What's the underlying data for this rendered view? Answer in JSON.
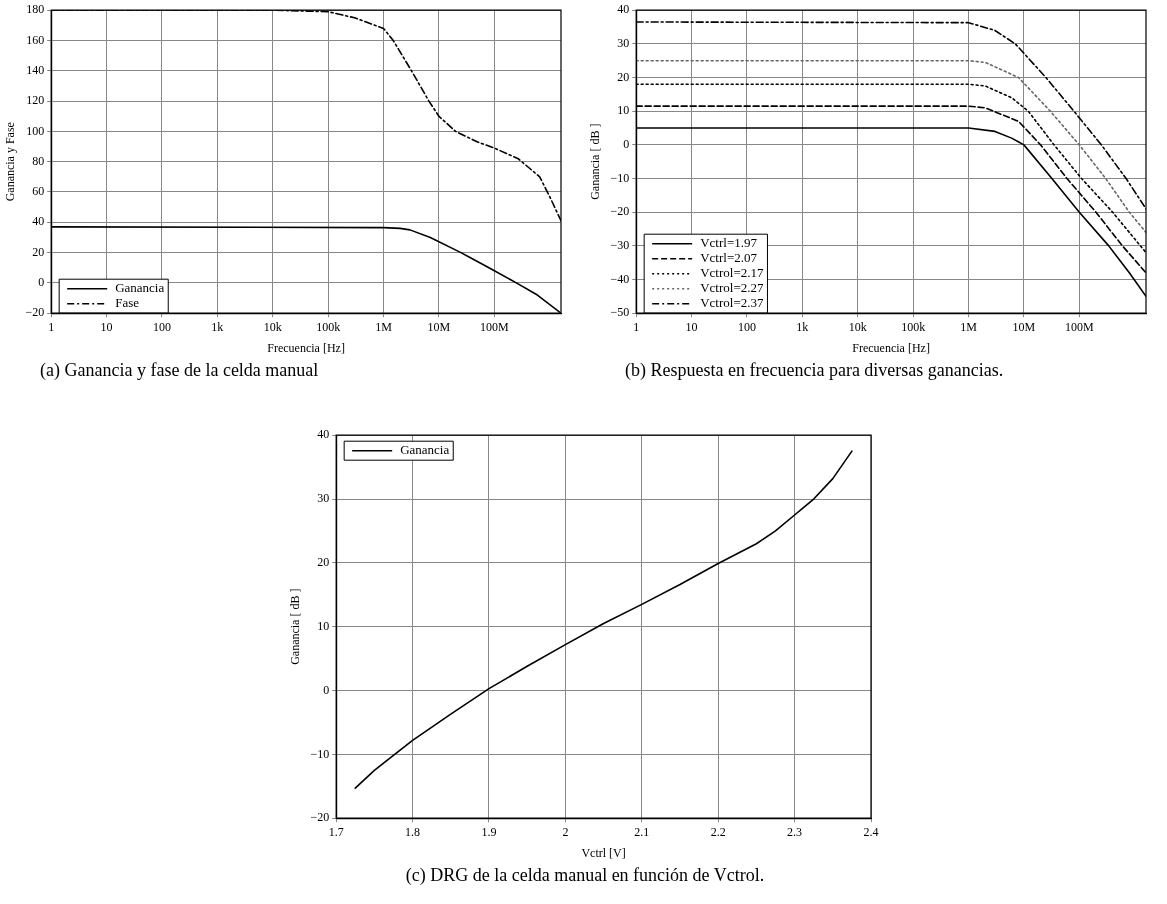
{
  "chart_data": [
    {
      "type": "line",
      "xlabel": "Frecuencia [Hz]",
      "ylabel": "Ganancia y Fase",
      "log": "x",
      "grid": true,
      "legend": "bottom left",
      "marker": "none",
      "xlim": [
        1,
        1600000000
      ],
      "xticks": [
        1,
        10,
        100,
        {
          "value": 1000,
          "label": "1k"
        },
        {
          "value": 10000,
          "label": "10k"
        },
        {
          "value": 100000,
          "label": "100k"
        },
        {
          "value": 1000000,
          "label": "1M"
        },
        {
          "value": 10000000,
          "label": "10M"
        },
        {
          "value": 100000000,
          "label": "100M"
        }
      ],
      "ylim": [
        -20,
        180
      ],
      "yticks": [
        -20,
        0,
        20,
        40,
        60,
        80,
        100,
        120,
        140,
        160,
        180
      ],
      "annotations": [
        "(a) Ganancia y fase de la celda manual"
      ],
      "series": [
        {
          "name": "Ganancia",
          "color": "#000000",
          "line_style": "solid",
          "x": [
            1,
            1000000,
            2000000,
            3000000,
            7000000,
            25000000,
            80000000,
            250000000,
            600000000,
            1600000000
          ],
          "values": [
            37,
            36.5,
            36,
            35,
            30,
            20,
            10,
            0,
            -8,
            -20
          ]
        },
        {
          "name": "Fase",
          "color": "#000000",
          "line_style": "dashdot",
          "x": [
            1,
            10000,
            100000,
            300000,
            1000000,
            1500000,
            3200000,
            6600000,
            10000000,
            20000000,
            50000000,
            100000000,
            270000000,
            660000000,
            1000000000,
            1600000000
          ],
          "values": [
            180,
            180,
            179,
            175,
            168,
            160,
            140,
            120,
            110,
            100,
            93,
            89,
            82,
            70,
            57,
            41
          ]
        }
      ]
    },
    {
      "type": "line",
      "xlabel": "Frecuencia [Hz]",
      "ylabel": "Ganancia [ dB ]",
      "log": "x",
      "grid": true,
      "legend": "bottom left",
      "marker": "none",
      "xlim": [
        1,
        1600000000
      ],
      "xticks": [
        1,
        10,
        100,
        {
          "value": 1000,
          "label": "1k"
        },
        {
          "value": 10000,
          "label": "10k"
        },
        {
          "value": 100000,
          "label": "100k"
        },
        {
          "value": 1000000,
          "label": "1M"
        },
        {
          "value": 10000000,
          "label": "10M"
        },
        {
          "value": 100000000,
          "label": "100M"
        }
      ],
      "ylim": [
        -50,
        40
      ],
      "yticks": [
        -50,
        -40,
        -30,
        -20,
        -10,
        0,
        10,
        20,
        30,
        40
      ],
      "annotations": [
        "(b) Respuesta en frecuencia para diversas ganancias."
      ],
      "series": [
        {
          "name": "Vctrl=1.97",
          "color": "#000000",
          "line_style": "solid",
          "x": [
            1,
            1000000,
            3000000,
            6000000,
            10000000,
            32000000,
            100000000,
            340000000,
            800000000,
            1600000000
          ],
          "values": [
            5,
            5,
            4,
            2,
            0,
            -10,
            -20,
            -30,
            -38,
            -45
          ]
        },
        {
          "name": "Vctrl=2.07",
          "color": "#000000",
          "line_style": "dashed",
          "x": [
            1,
            1000000,
            2000000,
            8000000,
            20000000,
            60000000,
            200000000,
            600000000,
            1600000000
          ],
          "values": [
            11.5,
            11.5,
            11,
            7,
            0,
            -10,
            -20,
            -30,
            -38
          ]
        },
        {
          "name": "Vctrol=2.17",
          "color": "#000000",
          "line_style": "dotted",
          "x": [
            1,
            1000000,
            2000000,
            6000000,
            12000000,
            35000000,
            110000000,
            400000000,
            1600000000
          ],
          "values": [
            18,
            18,
            17.5,
            14,
            10,
            0,
            -10,
            -20,
            -32
          ]
        },
        {
          "name": "Vctrol=2.27",
          "color": "#666666",
          "line_style": "dotted",
          "x": [
            1,
            1000000,
            2000000,
            8000000,
            30000000,
            100000000,
            300000000,
            800000000,
            1600000000
          ],
          "values": [
            25,
            25,
            24.5,
            20,
            10,
            0,
            -10,
            -20,
            -26
          ]
        },
        {
          "name": "Vctrol=2.37",
          "color": "#000000",
          "line_style": "dashdot",
          "x": [
            1,
            1000000,
            3000000,
            7000000,
            25000000,
            80000000,
            250000000,
            700000000,
            1600000000
          ],
          "values": [
            36.5,
            36.3,
            34,
            30,
            20,
            10,
            0,
            -10,
            -19
          ]
        }
      ]
    },
    {
      "type": "line",
      "xlabel": "Vctrl [V]",
      "ylabel": "Ganancia [ dB ]",
      "grid": true,
      "legend": "top left",
      "marker": "none",
      "xlim": [
        1.7,
        2.4
      ],
      "xticks": [
        1.7,
        1.8,
        1.9,
        2,
        2.1,
        2.2,
        2.3,
        2.4
      ],
      "ylim": [
        -20,
        40
      ],
      "yticks": [
        -20,
        -10,
        0,
        10,
        20,
        30,
        40
      ],
      "annotations": [
        "(c) DRG de la celda manual en función de Vctrol."
      ],
      "series": [
        {
          "name": "Ganancia",
          "color": "#000000",
          "line_style": "solid",
          "x": [
            1.725,
            1.75,
            1.8,
            1.85,
            1.9,
            1.95,
            2.0,
            2.05,
            2.1,
            2.15,
            2.2,
            2.25,
            2.275,
            2.3,
            2.325,
            2.35,
            2.375
          ],
          "values": [
            -15.3,
            -12.5,
            -7.8,
            -3.7,
            0.3,
            3.8,
            7.2,
            10.5,
            13.5,
            16.6,
            19.9,
            23,
            25,
            27.5,
            30,
            33.2,
            37.5
          ]
        }
      ]
    }
  ]
}
